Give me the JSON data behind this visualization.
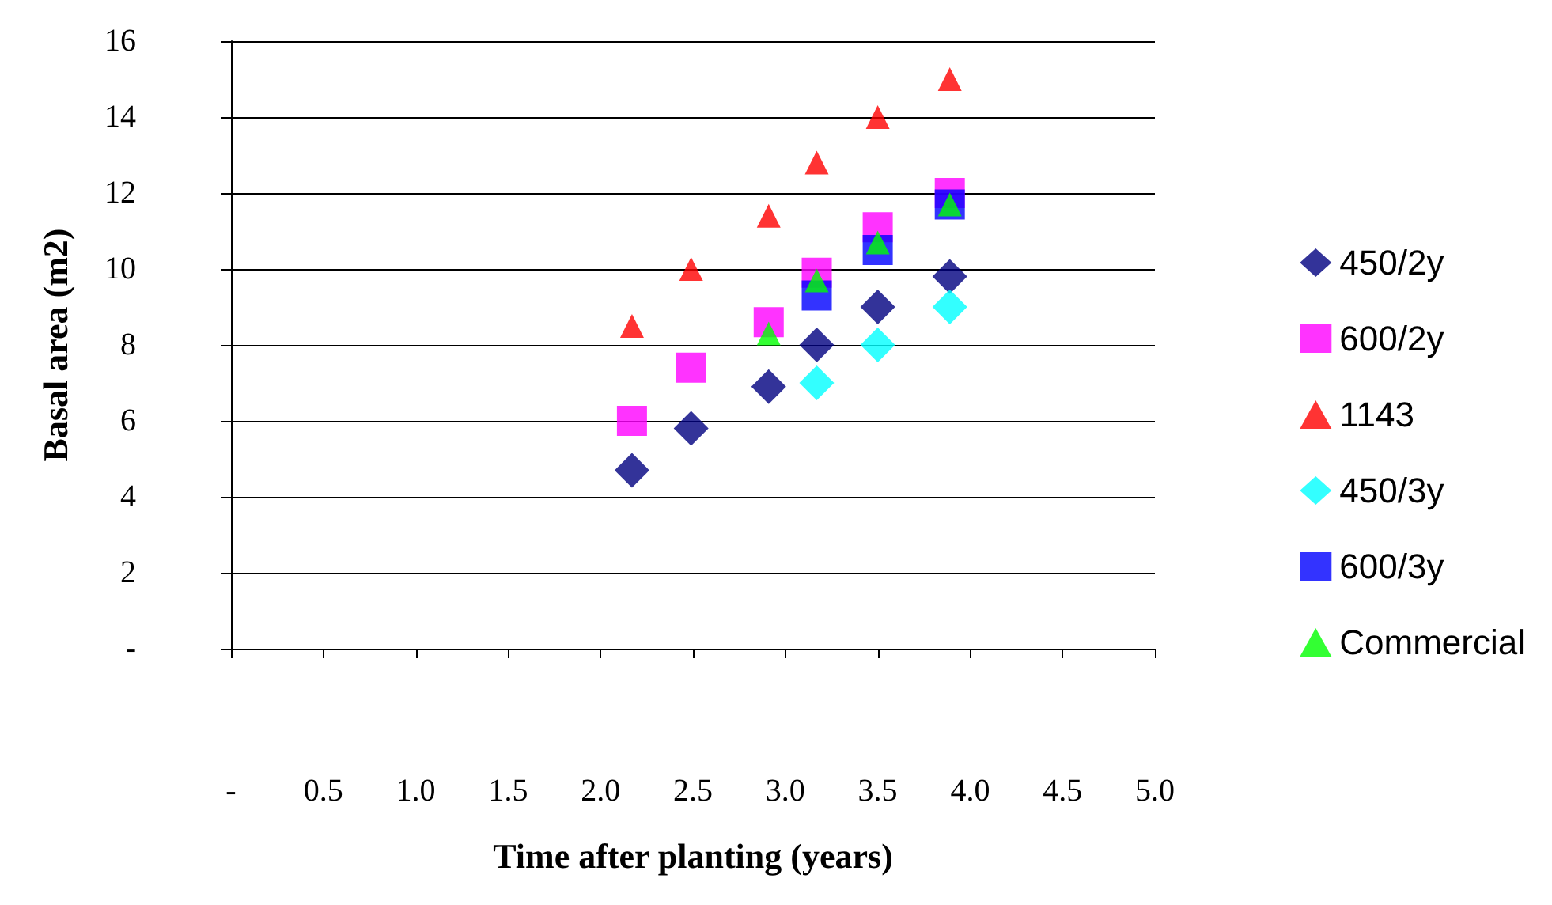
{
  "chart_data": {
    "type": "scatter",
    "xlabel": "Time after planting (years)",
    "ylabel": "Basal area (m2)",
    "xlim": [
      0,
      5
    ],
    "ylim": [
      0,
      16
    ],
    "xticks": [
      {
        "value": 0,
        "label": "-"
      },
      {
        "value": 0.5,
        "label": "0.5"
      },
      {
        "value": 1,
        "label": "1.0"
      },
      {
        "value": 1.5,
        "label": "1.5"
      },
      {
        "value": 2,
        "label": "2.0"
      },
      {
        "value": 2.5,
        "label": "2.5"
      },
      {
        "value": 3,
        "label": "3.0"
      },
      {
        "value": 3.5,
        "label": "3.5"
      },
      {
        "value": 4,
        "label": "4.0"
      },
      {
        "value": 4.5,
        "label": "4.5"
      },
      {
        "value": 5,
        "label": "5.0"
      }
    ],
    "yticks": [
      {
        "value": 0,
        "label": "-"
      },
      2,
      4,
      6,
      8,
      10,
      12,
      14,
      16
    ],
    "grid": "y",
    "legend": "right",
    "series": [
      {
        "name": "450/2y",
        "color": "#000080",
        "marker": "diamond",
        "x": [
          2.17,
          2.49,
          2.91,
          3.17,
          3.5,
          3.89
        ],
        "values": [
          4.7,
          5.8,
          6.9,
          8.0,
          9.0,
          9.8
        ]
      },
      {
        "name": "600/2y",
        "color": "#ff00ff",
        "marker": "square",
        "x": [
          2.17,
          2.49,
          2.91,
          3.17,
          3.5,
          3.89
        ],
        "values": [
          6.0,
          7.4,
          8.6,
          9.9,
          11.1,
          12.0
        ]
      },
      {
        "name": "1143",
        "color": "#ff0000",
        "marker": "triangle",
        "x": [
          2.17,
          2.49,
          2.91,
          3.17,
          3.5,
          3.89
        ],
        "values": [
          8.5,
          10.0,
          11.4,
          12.8,
          14.0,
          15.0
        ]
      },
      {
        "name": "450/3y",
        "color": "#00ffff",
        "marker": "diamond",
        "x": [
          3.17,
          3.5,
          3.89
        ],
        "values": [
          7.0,
          8.0,
          9.0
        ]
      },
      {
        "name": "600/3y",
        "color": "#0000ff",
        "marker": "square",
        "x": [
          3.17,
          3.5,
          3.89
        ],
        "values": [
          9.3,
          10.5,
          11.7
        ]
      },
      {
        "name": "Commercial",
        "color": "#00ff00",
        "marker": "triangle",
        "x": [
          2.91,
          3.17,
          3.5,
          3.89
        ],
        "values": [
          8.3,
          9.7,
          10.7,
          11.7
        ]
      }
    ]
  }
}
